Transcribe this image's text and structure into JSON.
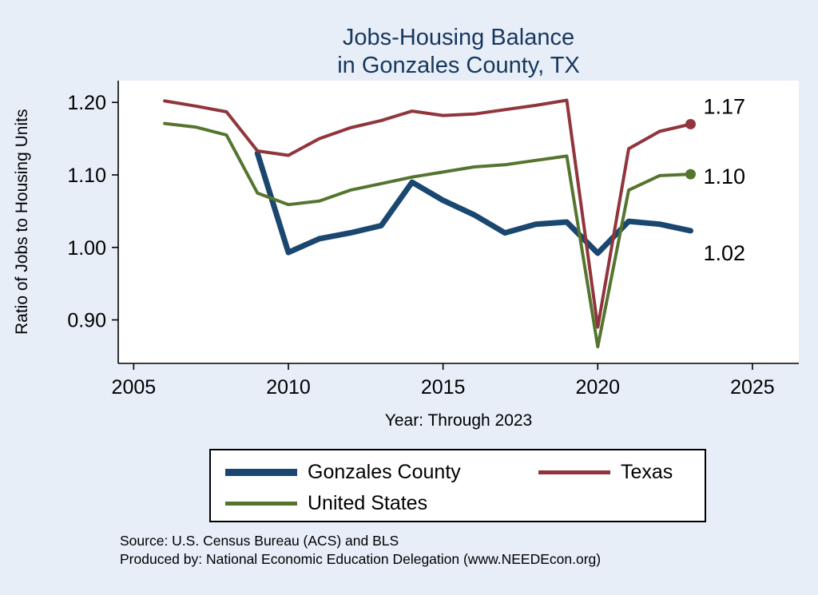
{
  "title": {
    "line1": "Jobs-Housing Balance",
    "line2": "in Gonzales County, TX",
    "color": "#17375d"
  },
  "axes": {
    "y_label": "Ratio of Jobs to Housing Units",
    "x_label": "Year: Through 2023"
  },
  "legend": {
    "items": [
      {
        "label": "Gonzales County",
        "color": "#1a476f"
      },
      {
        "label": "Texas",
        "color": "#90353b"
      },
      {
        "label": "United States",
        "color": "#55752f"
      }
    ]
  },
  "source": {
    "line1": "Source: U.S. Census Bureau (ACS) and BLS",
    "line2": "Produced by: National Economic Education Delegation (www.NEEDEcon.org)"
  },
  "chart_data": {
    "type": "line",
    "title": "Jobs-Housing Balance in Gonzales County, TX",
    "xlabel": "Year: Through 2023",
    "ylabel": "Ratio of Jobs to Housing Units",
    "xlim": [
      2004.5,
      2026.5
    ],
    "ylim": [
      0.84,
      1.23
    ],
    "xticks": [
      2005,
      2010,
      2015,
      2020,
      2025
    ],
    "yticks": [
      0.9,
      1.0,
      1.1,
      1.2
    ],
    "grid": false,
    "legend_position": "bottom",
    "series": [
      {
        "name": "Gonzales County",
        "color": "#1a476f",
        "width": 7,
        "end_label": "1.02",
        "end_dot": false,
        "x": [
          2009,
          2010,
          2011,
          2012,
          2013,
          2014,
          2015,
          2016,
          2017,
          2018,
          2019,
          2020,
          2021,
          2022,
          2023
        ],
        "values": [
          1.13,
          0.993,
          1.012,
          1.02,
          1.03,
          1.09,
          1.065,
          1.045,
          1.02,
          1.032,
          1.035,
          0.992,
          1.036,
          1.032,
          1.023
        ]
      },
      {
        "name": "Texas",
        "color": "#90353b",
        "width": 4,
        "end_label": "1.17",
        "end_dot": true,
        "x": [
          2006,
          2007,
          2008,
          2009,
          2010,
          2011,
          2012,
          2013,
          2014,
          2015,
          2016,
          2017,
          2018,
          2019,
          2020,
          2021,
          2022,
          2023
        ],
        "values": [
          1.202,
          1.195,
          1.187,
          1.133,
          1.127,
          1.15,
          1.165,
          1.175,
          1.188,
          1.182,
          1.184,
          1.19,
          1.196,
          1.203,
          0.89,
          1.136,
          1.16,
          1.17
        ]
      },
      {
        "name": "United States",
        "color": "#55752f",
        "width": 4,
        "end_label": "1.10",
        "end_dot": true,
        "x": [
          2006,
          2007,
          2008,
          2009,
          2010,
          2011,
          2012,
          2013,
          2014,
          2015,
          2016,
          2017,
          2018,
          2019,
          2020,
          2021,
          2022,
          2023
        ],
        "values": [
          1.171,
          1.166,
          1.155,
          1.075,
          1.059,
          1.064,
          1.079,
          1.088,
          1.097,
          1.104,
          1.111,
          1.114,
          1.12,
          1.126,
          0.863,
          1.079,
          1.099,
          1.101
        ]
      }
    ]
  }
}
